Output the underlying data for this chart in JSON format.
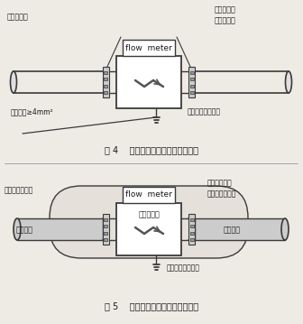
{
  "fig4_title": "图 4    电磁流量计接地连（跨）接法",
  "fig5_title": "图 5    带阴极保护电磁流量计接地法",
  "flow_meter_label": "flow  meter",
  "emf_label": "电磁流量计",
  "fig4_labels": {
    "top_left": "与管道跨接",
    "top_right": "电磁流量计",
    "right_mid": "与管道跨接",
    "bottom_left": "接地软线≥4mm²",
    "bottom_right": "接地点或接地干线"
  },
  "fig5_labels": {
    "top_right1": "管道接地跨接",
    "top_left": "阴极保护引出点",
    "top_right2": "阴极保护引出点",
    "left_pipe": "金属管道",
    "right_pipe": "金属管道",
    "emf": "电磁流量计",
    "bottom": "接地点或接地干线"
  },
  "bg_color": "#eeebe5",
  "line_color": "#3a3a3a",
  "box_color": "#ffffff",
  "text_color": "#1a1a1a"
}
